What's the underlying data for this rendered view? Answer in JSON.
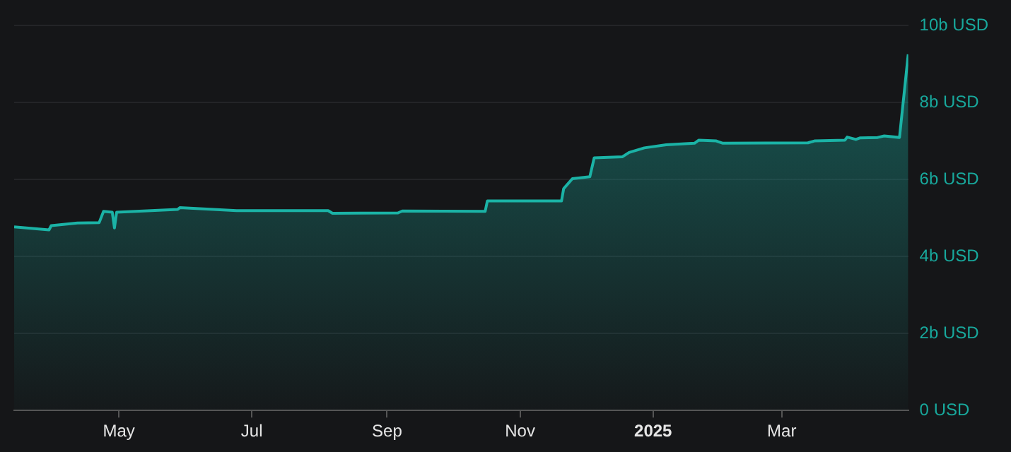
{
  "chart_data": {
    "type": "area",
    "x": [
      "2024-03-14",
      "2024-03-30",
      "2024-03-31",
      "2024-04-12",
      "2024-04-22",
      "2024-04-24",
      "2024-04-28",
      "2024-04-29",
      "2024-04-30",
      "2024-05-28",
      "2024-05-29",
      "2024-06-24",
      "2024-08-05",
      "2024-08-07",
      "2024-09-06",
      "2024-09-08",
      "2024-10-16",
      "2024-10-17",
      "2024-11-20",
      "2024-11-21",
      "2024-11-25",
      "2024-12-03",
      "2024-12-05",
      "2024-12-18",
      "2024-12-21",
      "2024-12-28",
      "2025-01-07",
      "2025-01-20",
      "2025-01-22",
      "2025-01-30",
      "2025-02-02",
      "2025-03-13",
      "2025-03-16",
      "2025-03-30",
      "2025-03-31",
      "2025-04-04",
      "2025-04-06",
      "2025-04-14",
      "2025-04-17",
      "2025-04-24",
      "2025-04-28"
    ],
    "series": [
      {
        "color": "#1bb3a6",
        "values": [
          4.77,
          4.69,
          4.8,
          4.87,
          4.88,
          5.17,
          5.15,
          4.74,
          5.15,
          5.22,
          5.27,
          5.19,
          5.19,
          5.12,
          5.13,
          5.18,
          5.17,
          5.44,
          5.44,
          5.76,
          6.02,
          6.07,
          6.56,
          6.59,
          6.7,
          6.82,
          6.9,
          6.94,
          7.02,
          7.0,
          6.94,
          6.95,
          7.0,
          7.02,
          7.1,
          7.04,
          7.08,
          7.09,
          7.13,
          7.09,
          9.25
        ]
      }
    ],
    "xlim": [
      "2024-03-14",
      "2025-04-28"
    ],
    "xticks": [
      {
        "value": "2024-05-01",
        "label": "May"
      },
      {
        "value": "2024-07-01",
        "label": "Jul"
      },
      {
        "value": "2024-09-01",
        "label": "Sep"
      },
      {
        "value": "2024-11-01",
        "label": "Nov"
      },
      {
        "value": "2025-01-01",
        "label": "2025"
      },
      {
        "value": "2025-03-01",
        "label": "Mar"
      }
    ],
    "ylim": [
      0,
      10
    ],
    "yticks": [
      {
        "value": 0,
        "label": "0 USD"
      },
      {
        "value": 2,
        "label": "2b USD"
      },
      {
        "value": 4,
        "label": "4b USD"
      },
      {
        "value": 6,
        "label": "6b USD"
      },
      {
        "value": 8,
        "label": "8b USD"
      },
      {
        "value": 10,
        "label": "10b USD"
      }
    ],
    "grid": "y",
    "legend": false,
    "marker": "none",
    "line_style": "solid"
  }
}
